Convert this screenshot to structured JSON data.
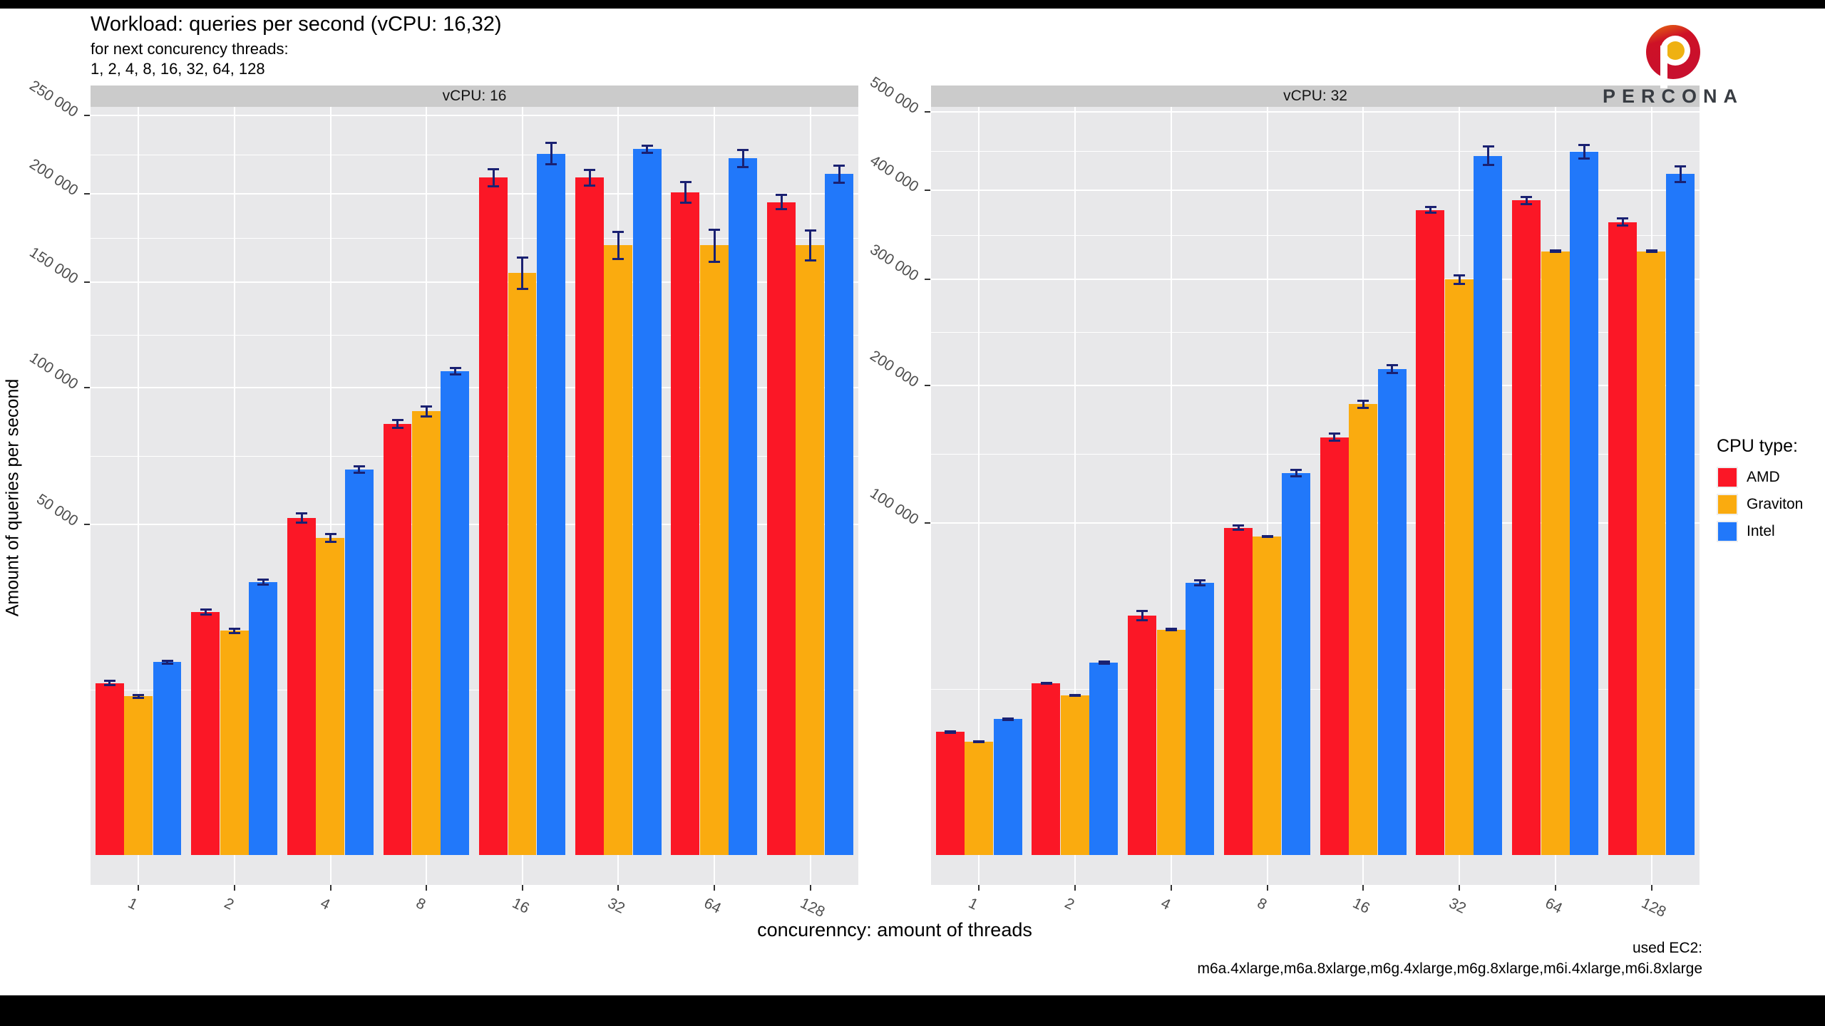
{
  "header": {
    "title": "Workload: queries per second (vCPU: 16,32)",
    "subtitle_line1": "for next concurency threads:",
    "subtitle_line2": "1, 2, 4, 8, 16, 32, 64, 128"
  },
  "axes": {
    "y_title": "Amount of queries per second",
    "x_title": "concurenncy: amount of threads"
  },
  "legend": {
    "title": "CPU type:",
    "items": [
      {
        "label": "AMD",
        "color": "#FB1726"
      },
      {
        "label": "Graviton",
        "color": "#FAAB0F"
      },
      {
        "label": "Intel",
        "color": "#2178FA"
      }
    ]
  },
  "footer": {
    "line1": "used EC2:",
    "line2": "m6a.4xlarge,m6a.8xlarge,m6g.4xlarge,m6g.8xlarge,m6i.4xlarge,m6i.8xlarge"
  },
  "logo": {
    "text": "PERCONA"
  },
  "colors": {
    "amd": "#FB1726",
    "graviton": "#FAAB0F",
    "intel": "#2178FA",
    "errorbar": "#1A2172",
    "panel_bg": "#E8E8EA",
    "strip_bg": "#CBCBCB",
    "grid": "#FFFFFF",
    "tick_label": "#4D4D4D"
  },
  "chart_data": {
    "type": "bar",
    "scale": "sqrt",
    "grid": true,
    "legend_position": "right",
    "categories": [
      "1",
      "2",
      "4",
      "8",
      "16",
      "32",
      "64",
      "128"
    ],
    "series_names": [
      "AMD",
      "Graviton",
      "Intel"
    ],
    "facets": [
      {
        "label": "vCPU: 16",
        "ymax": 256000,
        "yticks": [
          {
            "value": 50000,
            "label": "50 000"
          },
          {
            "value": 100000,
            "label": "100 000"
          },
          {
            "value": 150000,
            "label": "150 000"
          },
          {
            "value": 200000,
            "label": "200 000"
          },
          {
            "value": 250000,
            "label": "250 000"
          }
        ],
        "series": [
          {
            "name": "AMD",
            "color_key": "amd",
            "values": [
              13500,
              27000,
              52000,
              85000,
              210000,
              210000,
              201000,
              195000
            ],
            "errors": [
              500,
              800,
              1800,
              2000,
              6000,
              5500,
              7000,
              5000
            ]
          },
          {
            "name": "Graviton",
            "color_key": "graviton",
            "values": [
              11500,
              23000,
              46000,
              90000,
              155000,
              170000,
              170000,
              170000
            ],
            "errors": [
              400,
              700,
              1500,
              2500,
              9000,
              8000,
              9500,
              9000
            ]
          },
          {
            "name": "Intel",
            "color_key": "intel",
            "values": [
              17000,
              34000,
              68000,
              107000,
              225000,
              228000,
              222000,
              212000
            ],
            "errors": [
              400,
              900,
              1500,
              1800,
              7500,
              3000,
              6000,
              6000
            ]
          }
        ]
      },
      {
        "label": "vCPU: 32",
        "ymax": 507000,
        "yticks": [
          {
            "value": 100000,
            "label": "100 000"
          },
          {
            "value": 200000,
            "label": "200 000"
          },
          {
            "value": 300000,
            "label": "300 000"
          },
          {
            "value": 400000,
            "label": "400 000"
          },
          {
            "value": 500000,
            "label": "500 000"
          }
        ],
        "series": [
          {
            "name": "AMD",
            "color_key": "amd",
            "values": [
              13700,
              26700,
              52000,
              97000,
              158000,
              377000,
              388000,
              363000
            ],
            "errors": [
              400,
              500,
              2500,
              2000,
              3500,
              4500,
              5500,
              5000
            ]
          },
          {
            "name": "Graviton",
            "color_key": "graviton",
            "values": [
              11600,
              23100,
              46000,
              92000,
              184000,
              300000,
              330000,
              330000
            ],
            "errors": [
              300,
              400,
              700,
              900,
              4000,
              5500,
              2000,
              2000
            ]
          },
          {
            "name": "Intel",
            "color_key": "intel",
            "values": [
              16700,
              33500,
              67000,
              132000,
              214000,
              443000,
              448000,
              420000
            ],
            "errors": [
              500,
              700,
              1800,
              3000,
              4500,
              13000,
              10000,
              11000
            ]
          }
        ]
      }
    ]
  }
}
